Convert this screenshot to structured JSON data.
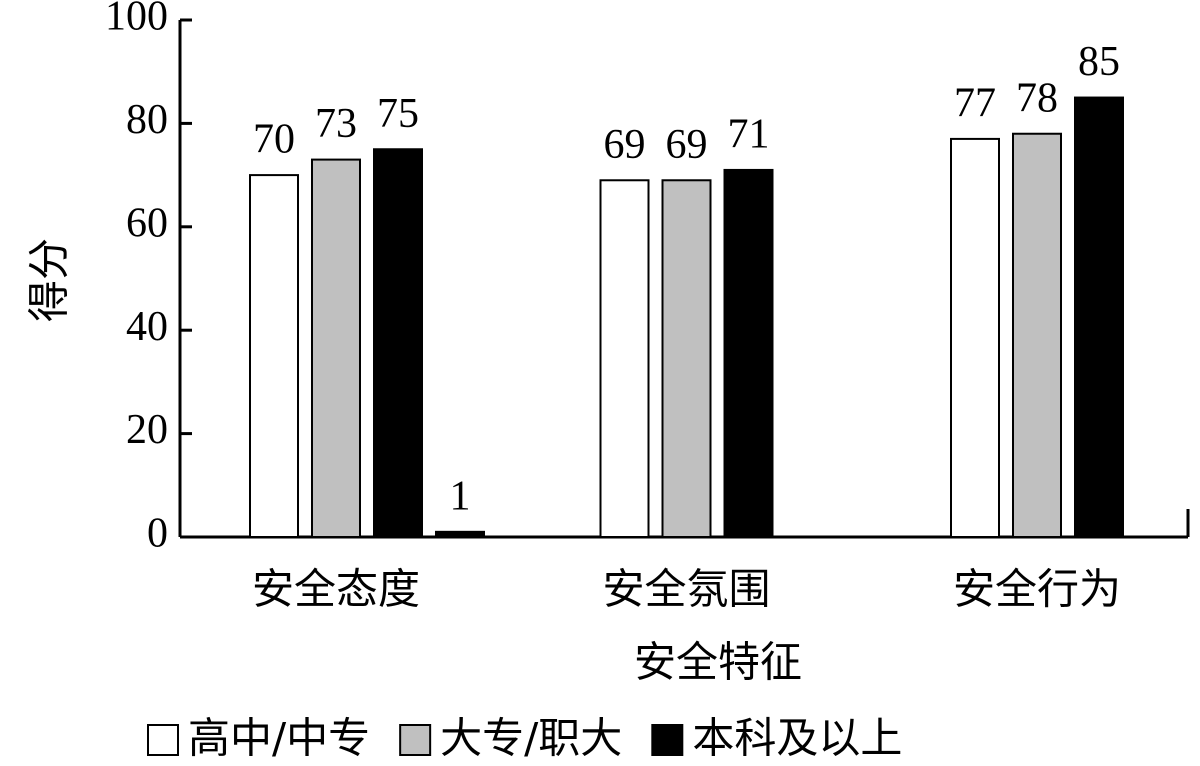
{
  "chart_data": {
    "type": "bar",
    "x_label": "安全特征",
    "y_label": "得分",
    "categories": [
      "安全态度",
      "安全氛围",
      "安全行为"
    ],
    "series": [
      {
        "name": "高中/中专",
        "color": "#ffffff",
        "values": [
          70,
          69,
          77
        ]
      },
      {
        "name": "大专/职大",
        "color": "#c0c0c0",
        "values": [
          73,
          69,
          78
        ]
      },
      {
        "name": "本科及以上",
        "color": "#000000",
        "values": [
          75,
          71,
          85
        ]
      },
      {
        "color": "#000000",
        "values": [
          1,
          null,
          null
        ]
      }
    ],
    "ylim": [
      0,
      100
    ],
    "yticks": [
      0,
      20,
      40,
      60,
      80,
      100
    ]
  }
}
